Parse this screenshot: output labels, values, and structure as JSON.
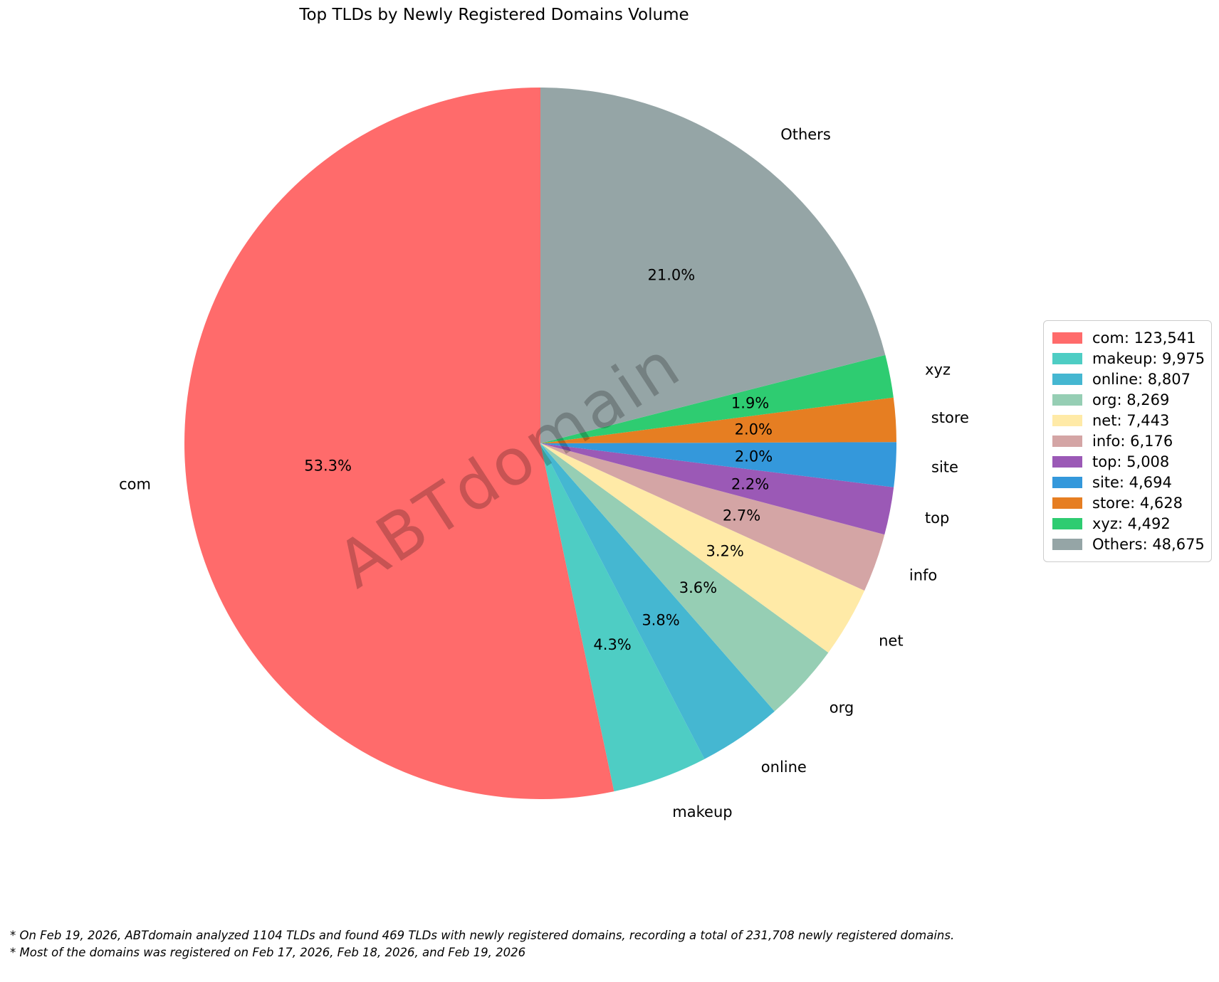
{
  "title": "Top TLDs by Newly Registered Domains Volume",
  "watermark": "ABTdomain",
  "footnotes": [
    "* On Feb 19, 2026, ABTdomain analyzed 1104 TLDs and found 469 TLDs with newly registered domains, recording a total of 231,708 newly registered domains.",
    "* Most of the domains was registered on Feb 17, 2026, Feb 18, 2026, and Feb 19, 2026"
  ],
  "chart_data": {
    "type": "pie",
    "title": "Top TLDs by Newly Registered Domains Volume",
    "start_angle": 90,
    "counterclock": true,
    "total": 231708,
    "legend_position": "center right",
    "pct_distance": 0.6,
    "label_distance": 1.1,
    "slices": [
      {
        "label": "com",
        "value": 123541,
        "value_formatted": "123,541",
        "pct_label": "53.3%",
        "legend_label": "com: 123,541",
        "color": "#FF6B6B"
      },
      {
        "label": "makeup",
        "value": 9975,
        "value_formatted": "9,975",
        "pct_label": "4.3%",
        "legend_label": "makeup: 9,975",
        "color": "#4ECDC4"
      },
      {
        "label": "online",
        "value": 8807,
        "value_formatted": "8,807",
        "pct_label": "3.8%",
        "legend_label": "online: 8,807",
        "color": "#45B7D1"
      },
      {
        "label": "org",
        "value": 8269,
        "value_formatted": "8,269",
        "pct_label": "3.6%",
        "legend_label": "org: 8,269",
        "color": "#96CEB4"
      },
      {
        "label": "net",
        "value": 7443,
        "value_formatted": "7,443",
        "pct_label": "3.2%",
        "legend_label": "net: 7,443",
        "color": "#FFEAA7"
      },
      {
        "label": "info",
        "value": 6176,
        "value_formatted": "6,176",
        "pct_label": "2.7%",
        "legend_label": "info: 6,176",
        "color": "#D4A5A5"
      },
      {
        "label": "top",
        "value": 5008,
        "value_formatted": "5,008",
        "pct_label": "2.2%",
        "legend_label": "top: 5,008",
        "color": "#9B59B6"
      },
      {
        "label": "site",
        "value": 4694,
        "value_formatted": "4,694",
        "pct_label": "2.0%",
        "legend_label": "site: 4,694",
        "color": "#3498DB"
      },
      {
        "label": "store",
        "value": 4628,
        "value_formatted": "4,628",
        "pct_label": "2.0%",
        "legend_label": "store: 4,628",
        "color": "#E67E22"
      },
      {
        "label": "xyz",
        "value": 4492,
        "value_formatted": "4,492",
        "pct_label": "1.9%",
        "legend_label": "xyz: 4,492",
        "color": "#2ECC71"
      },
      {
        "label": "Others",
        "value": 48675,
        "value_formatted": "48,675",
        "pct_label": "21.0%",
        "legend_label": "Others: 48,675",
        "color": "#95A5A6"
      }
    ]
  }
}
